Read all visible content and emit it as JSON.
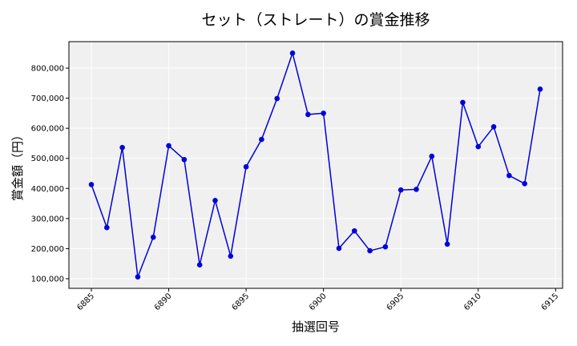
{
  "chart_data": {
    "type": "line",
    "title": "セット（ストレート）の賞金推移",
    "xlabel": "抽選回号",
    "ylabel": "賞金額（円）",
    "x": [
      6885,
      6886,
      6887,
      6888,
      6889,
      6890,
      6891,
      6892,
      6893,
      6894,
      6895,
      6896,
      6897,
      6898,
      6899,
      6900,
      6901,
      6902,
      6903,
      6904,
      6905,
      6906,
      6907,
      6908,
      6909,
      6910,
      6911,
      6912,
      6913,
      6914
    ],
    "series": [
      {
        "values": [
          413000,
          270000,
          536000,
          106000,
          238000,
          542000,
          496000,
          146000,
          360000,
          175000,
          472000,
          563000,
          699000,
          850000,
          646000,
          650000,
          201000,
          259000,
          193000,
          206000,
          395000,
          397000,
          507000,
          215000,
          686000,
          539000,
          605000,
          443000,
          416000,
          730000
        ]
      }
    ],
    "xlim": [
      6883.55,
      6915.45
    ],
    "ylim": [
      68000,
      888000
    ],
    "xticks": [
      6885,
      6890,
      6895,
      6900,
      6905,
      6910,
      6915
    ],
    "xtick_labels": [
      "6885",
      "6890",
      "6895",
      "6900",
      "6905",
      "6910",
      "6915"
    ],
    "yticks": [
      100000,
      200000,
      300000,
      400000,
      500000,
      600000,
      700000,
      800000
    ],
    "ytick_labels": [
      "100,000",
      "200,000",
      "300,000",
      "400,000",
      "500,000",
      "600,000",
      "700,000",
      "800,000"
    ],
    "grid": true,
    "colors": {
      "line": "#0000dd",
      "plot_bg": "#f0f0f0",
      "grid": "#ffffff"
    }
  }
}
